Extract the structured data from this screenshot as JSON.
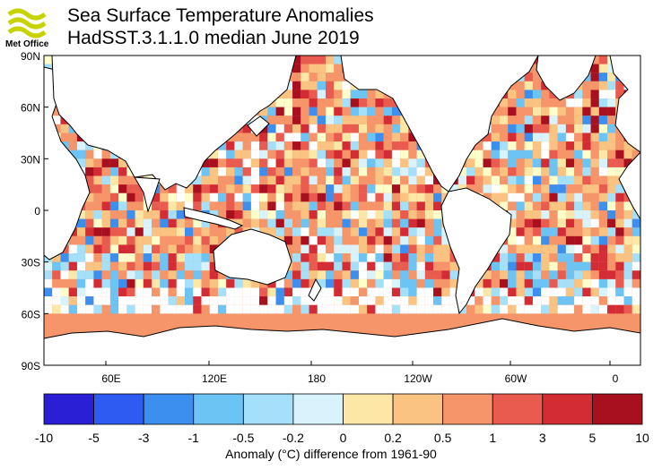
{
  "header": {
    "logo_text": "Met Office",
    "title_line1": "Sea Surface Temperature Anomalies",
    "title_line2": "HadSST.3.1.1.0 median June 2019"
  },
  "map": {
    "projection": "equirectangular, centered on 150E",
    "lat_ticks": [
      "90N",
      "60N",
      "30N",
      "0",
      "30S",
      "60S",
      "90S"
    ],
    "lon_ticks": [
      "60E",
      "120E",
      "180",
      "120W",
      "60W",
      "0"
    ],
    "land_color": "#ffffff",
    "missing_data_color": "#ffffff",
    "grid": "5 degree cells"
  },
  "colorbar": {
    "labels": [
      "-10",
      "-5",
      "-3",
      "-1",
      "-0.5",
      "-0.2",
      "0",
      "0.2",
      "0.5",
      "1",
      "3",
      "5",
      "10"
    ],
    "colors": [
      "#2b1fd6",
      "#2e5cf2",
      "#3d8fef",
      "#6cc4f5",
      "#a5e0fa",
      "#d8f3fc",
      "#ffffcc",
      "#fde7a6",
      "#fbc381",
      "#f6956a",
      "#e85b4e",
      "#d42c35",
      "#a80f1f"
    ],
    "title": "Anomaly (°C) difference from 1961-90"
  }
}
